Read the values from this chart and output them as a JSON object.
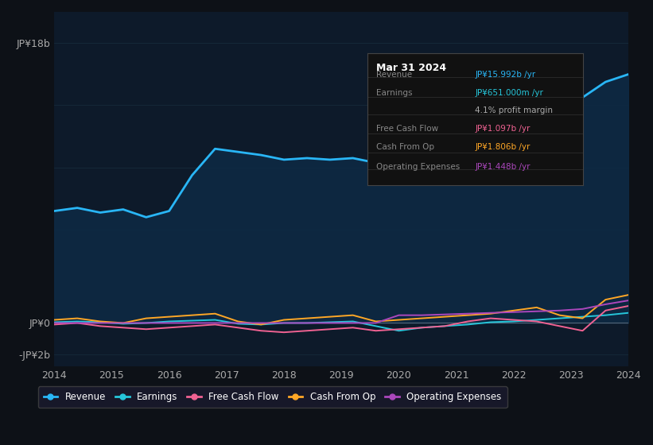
{
  "background_color": "#0d1117",
  "plot_bg_color": "#0d1a2a",
  "ylabel_top": "JP¥18b",
  "ylabel_zero": "JP¥0",
  "ylabel_neg": "-JP¥2b",
  "x_labels": [
    "2014",
    "2015",
    "2016",
    "2017",
    "2018",
    "2019",
    "2020",
    "2021",
    "2022",
    "2023",
    "2024"
  ],
  "legend_items": [
    {
      "label": "Revenue",
      "color": "#29b6f6"
    },
    {
      "label": "Earnings",
      "color": "#26c6da"
    },
    {
      "label": "Free Cash Flow",
      "color": "#f06292"
    },
    {
      "label": "Cash From Op",
      "color": "#ffa726"
    },
    {
      "label": "Operating Expenses",
      "color": "#ab47bc"
    }
  ],
  "tooltip_date": "Mar 31 2024",
  "tooltip_rows": [
    {
      "label": "Revenue",
      "value": "JP¥15.992b /yr",
      "value_color": "#29b6f6",
      "label_color": "#888888"
    },
    {
      "label": "Earnings",
      "value": "JP¥651.000m /yr",
      "value_color": "#26c6da",
      "label_color": "#888888"
    },
    {
      "label": "",
      "value": "4.1% profit margin",
      "value_color": "#aaaaaa",
      "label_color": "#aaaaaa"
    },
    {
      "label": "Free Cash Flow",
      "value": "JP¥1.097b /yr",
      "value_color": "#f06292",
      "label_color": "#888888"
    },
    {
      "label": "Cash From Op",
      "value": "JP¥1.806b /yr",
      "value_color": "#ffa726",
      "label_color": "#888888"
    },
    {
      "label": "Operating Expenses",
      "value": "JP¥1.448b /yr",
      "value_color": "#ab47bc",
      "label_color": "#888888"
    }
  ],
  "revenue": [
    7.2,
    7.4,
    7.1,
    7.3,
    6.8,
    7.2,
    9.5,
    11.2,
    11.0,
    10.8,
    10.5,
    10.6,
    10.5,
    10.6,
    10.3,
    10.2,
    10.4,
    10.6,
    10.8,
    11.0,
    11.5,
    12.5,
    13.5,
    14.5,
    15.5,
    15.992
  ],
  "earnings": [
    0.05,
    0.1,
    0.05,
    -0.05,
    0.0,
    0.1,
    0.15,
    0.2,
    -0.05,
    -0.1,
    0.0,
    0.0,
    0.05,
    0.1,
    -0.2,
    -0.5,
    -0.3,
    -0.2,
    -0.1,
    0.05,
    0.1,
    0.2,
    0.3,
    0.4,
    0.5,
    0.651
  ],
  "free_cash_flow": [
    -0.1,
    0.0,
    -0.2,
    -0.3,
    -0.4,
    -0.3,
    -0.2,
    -0.1,
    -0.3,
    -0.5,
    -0.6,
    -0.5,
    -0.4,
    -0.3,
    -0.5,
    -0.4,
    -0.3,
    -0.2,
    0.1,
    0.3,
    0.2,
    0.1,
    -0.2,
    -0.5,
    0.8,
    1.097
  ],
  "cash_from_op": [
    0.2,
    0.3,
    0.1,
    0.0,
    0.3,
    0.4,
    0.5,
    0.6,
    0.1,
    -0.1,
    0.2,
    0.3,
    0.4,
    0.5,
    0.1,
    0.2,
    0.3,
    0.4,
    0.5,
    0.6,
    0.8,
    1.0,
    0.5,
    0.3,
    1.5,
    1.806
  ],
  "operating_expenses": [
    0.0,
    0.0,
    0.0,
    0.0,
    0.0,
    0.0,
    0.0,
    0.0,
    0.0,
    0.0,
    0.0,
    0.0,
    0.0,
    0.0,
    0.0,
    0.5,
    0.5,
    0.55,
    0.6,
    0.65,
    0.7,
    0.75,
    0.8,
    0.9,
    1.2,
    1.448
  ],
  "ylim": [
    -2.8,
    20
  ],
  "n_points": 26
}
